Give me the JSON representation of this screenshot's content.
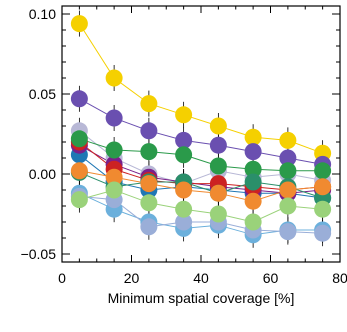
{
  "chart_data": {
    "type": "scatter",
    "title": "",
    "xlabel": "Minimum spatial coverage [%]",
    "ylabel": "",
    "xlim": [
      0,
      80
    ],
    "ylim": [
      -0.055,
      0.105
    ],
    "x_ticks": [
      0,
      20,
      40,
      60,
      80
    ],
    "y_ticks": [
      -0.05,
      0.0,
      0.05,
      0.1
    ],
    "x_tick_labels": [
      "0",
      "20",
      "40",
      "60",
      "80"
    ],
    "y_tick_labels": [
      "−0.05",
      "0.00",
      "0.05",
      "0.10"
    ],
    "grid": false,
    "legend": "none",
    "x": [
      5,
      15,
      25,
      35,
      45,
      55,
      65,
      75
    ],
    "series": [
      {
        "color": "#f5d000",
        "values": [
          0.094,
          0.06,
          0.044,
          0.037,
          0.03,
          0.023,
          0.021,
          0.013
        ]
      },
      {
        "color": "#6a4fb0",
        "values": [
          0.047,
          0.035,
          0.027,
          0.021,
          0.018,
          0.014,
          0.01,
          0.006
        ]
      },
      {
        "color": "#b8b8d6",
        "values": [
          0.027,
          0.01,
          0.0,
          -0.006,
          0.002,
          -0.002,
          0.0,
          -0.004
        ]
      },
      {
        "color": "#1f77b4",
        "values": [
          0.012,
          -0.005,
          -0.01,
          -0.008,
          -0.01,
          -0.012,
          -0.012,
          -0.015
        ]
      },
      {
        "color": "#7a1f8a",
        "values": [
          0.018,
          0.006,
          -0.002,
          -0.005,
          -0.008,
          -0.01,
          -0.012,
          -0.01
        ]
      },
      {
        "color": "#cc2222",
        "values": [
          0.02,
          0.003,
          -0.004,
          -0.006,
          -0.006,
          -0.008,
          -0.01,
          -0.008
        ]
      },
      {
        "color": "#2a9a4a",
        "values": [
          0.022,
          0.015,
          0.014,
          0.012,
          0.005,
          0.003,
          0.002,
          0.002
        ]
      },
      {
        "color": "#2a8f6a",
        "values": [
          0.001,
          -0.008,
          -0.005,
          -0.005,
          -0.012,
          -0.005,
          -0.008,
          -0.015
        ]
      },
      {
        "color": "#f08a30",
        "values": [
          0.002,
          -0.002,
          -0.006,
          -0.01,
          -0.012,
          -0.017,
          -0.01,
          -0.008
        ]
      },
      {
        "color": "#6cb0dc",
        "values": [
          -0.012,
          -0.022,
          -0.03,
          -0.034,
          -0.032,
          -0.038,
          -0.035,
          -0.035
        ]
      },
      {
        "color": "#9aaed8",
        "values": [
          -0.014,
          -0.016,
          -0.033,
          -0.03,
          -0.03,
          -0.035,
          -0.036,
          -0.037
        ]
      },
      {
        "color": "#9ad27a",
        "values": [
          -0.016,
          -0.01,
          -0.018,
          -0.022,
          -0.025,
          -0.03,
          -0.02,
          -0.022
        ]
      }
    ]
  }
}
